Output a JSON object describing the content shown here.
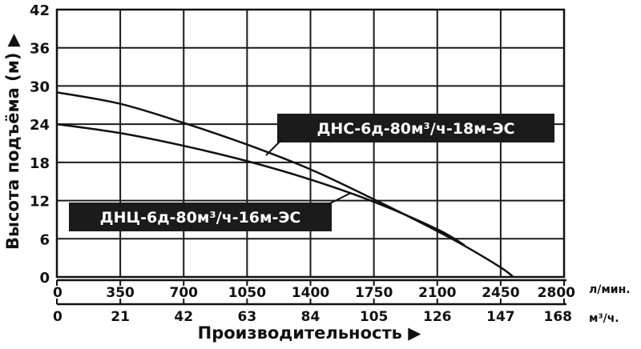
{
  "chart_data": {
    "type": "line",
    "title": "",
    "ylabel": "Высота подъёма (м) ▶",
    "xlabel": "Производительность ▶",
    "ylim": [
      0,
      42
    ],
    "yticks": [
      "0",
      "6",
      "12",
      "18",
      "24",
      "30",
      "36",
      "42"
    ],
    "x_primary": {
      "unit": "л/мин.",
      "range": [
        0,
        2800
      ],
      "ticks": [
        "0",
        "350",
        "700",
        "1050",
        "1400",
        "1750",
        "2100",
        "2450",
        "2800"
      ]
    },
    "x_secondary": {
      "unit": "м³/ч.",
      "range": [
        0,
        168
      ],
      "ticks": [
        "0",
        "21",
        "42",
        "63",
        "84",
        "105",
        "126",
        "147",
        "168"
      ]
    },
    "grid": true,
    "series": [
      {
        "name": "ДНС-6д-80м³/ч-18м-ЭС",
        "x": [
          0,
          350,
          700,
          1050,
          1400,
          1750,
          2100,
          2250,
          2450,
          2520
        ],
        "y": [
          29,
          27.2,
          24.2,
          20.8,
          16.9,
          12.2,
          7.2,
          4.9,
          1.5,
          0
        ]
      },
      {
        "name": "ДНЦ-6д-80м³/ч-16м-ЭС",
        "x": [
          0,
          350,
          700,
          1050,
          1400,
          1750,
          2100,
          2250
        ],
        "y": [
          24,
          22.6,
          20.6,
          18.2,
          15.3,
          11.8,
          7.5,
          5
        ]
      }
    ]
  }
}
